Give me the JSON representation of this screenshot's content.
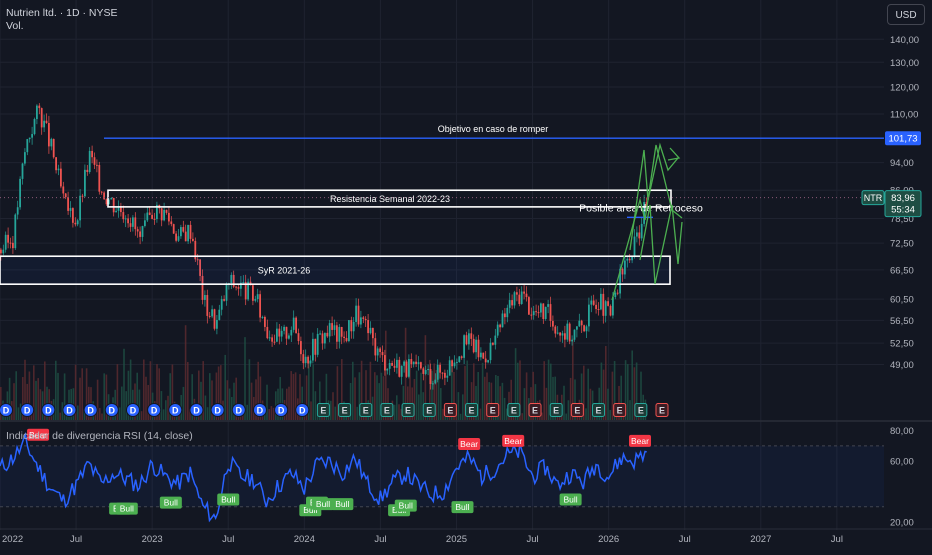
{
  "header": {
    "symbol_line": "Nutrien ltd. · 1D · NYSE",
    "volume_label": "Vol.",
    "currency_button": "USD"
  },
  "rsi": {
    "legend": "Indicador de divergencia RSI (14, close)",
    "axis_labels": [
      "80,00",
      "60,00",
      "20,00"
    ],
    "bull_label": "Bull",
    "bear_label": "Bear"
  },
  "price_tags": {
    "objective": "101,73",
    "symbol": "NTR",
    "last": "83,96",
    "countdown": "55:34"
  },
  "chart_data": [
    {
      "type": "candlestick",
      "title": "Nutrien ltd. · 1D · NYSE",
      "x_ticks": [
        "2022",
        "Jul",
        "2023",
        "Jul",
        "2024",
        "Jul",
        "2025",
        "Jul",
        "2026",
        "Jul",
        "2027",
        "Jul"
      ],
      "x_range": [
        "2022-01",
        "2027-12"
      ],
      "y_scale": "log",
      "y_ticks": [
        140,
        130,
        120,
        110,
        94,
        86,
        78.5,
        72.5,
        66.5,
        60.5,
        56.5,
        52.5,
        49
      ],
      "y_tick_labels": [
        "140,00",
        "130,00",
        "120,00",
        "110,00",
        "94,00",
        "86,00",
        "78,50",
        "72,50",
        "66,50",
        "60,50",
        "56,50",
        "52,50",
        "49,00"
      ],
      "ylim": [
        47.5,
        142
      ],
      "last_price": 83.96,
      "close_path": [
        {
          "x": "2022-01",
          "y": 71
        },
        {
          "x": "2022-02",
          "y": 74
        },
        {
          "x": "2022-03",
          "y": 100
        },
        {
          "x": "2022-04",
          "y": 112
        },
        {
          "x": "2022-05",
          "y": 98
        },
        {
          "x": "2022-06",
          "y": 82
        },
        {
          "x": "2022-07",
          "y": 78
        },
        {
          "x": "2022-08",
          "y": 96
        },
        {
          "x": "2022-09",
          "y": 86
        },
        {
          "x": "2022-10",
          "y": 82
        },
        {
          "x": "2022-11",
          "y": 80
        },
        {
          "x": "2022-12",
          "y": 73
        },
        {
          "x": "2023-01",
          "y": 81
        },
        {
          "x": "2023-02",
          "y": 80
        },
        {
          "x": "2023-03",
          "y": 74
        },
        {
          "x": "2023-04",
          "y": 76
        },
        {
          "x": "2023-05",
          "y": 60
        },
        {
          "x": "2023-06",
          "y": 56
        },
        {
          "x": "2023-07",
          "y": 64
        },
        {
          "x": "2023-08",
          "y": 63
        },
        {
          "x": "2023-09",
          "y": 61
        },
        {
          "x": "2023-10",
          "y": 55
        },
        {
          "x": "2023-11",
          "y": 53
        },
        {
          "x": "2023-12",
          "y": 56
        },
        {
          "x": "2024-01",
          "y": 50
        },
        {
          "x": "2024-02",
          "y": 53
        },
        {
          "x": "2024-03",
          "y": 55
        },
        {
          "x": "2024-04",
          "y": 53
        },
        {
          "x": "2024-05",
          "y": 58
        },
        {
          "x": "2024-06",
          "y": 54
        },
        {
          "x": "2024-07",
          "y": 50
        },
        {
          "x": "2024-08",
          "y": 49
        },
        {
          "x": "2024-09",
          "y": 48.5
        },
        {
          "x": "2024-10",
          "y": 47.8
        },
        {
          "x": "2024-11",
          "y": 47.5
        },
        {
          "x": "2024-12",
          "y": 48
        },
        {
          "x": "2025-01",
          "y": 51
        },
        {
          "x": "2025-02",
          "y": 53
        },
        {
          "x": "2025-03",
          "y": 50
        },
        {
          "x": "2025-04",
          "y": 53
        },
        {
          "x": "2025-05",
          "y": 59
        },
        {
          "x": "2025-06",
          "y": 62
        },
        {
          "x": "2025-07",
          "y": 58
        },
        {
          "x": "2025-08",
          "y": 58
        },
        {
          "x": "2025-09",
          "y": 55
        },
        {
          "x": "2025-10",
          "y": 54
        },
        {
          "x": "2025-11",
          "y": 56
        },
        {
          "x": "2025-12",
          "y": 61
        },
        {
          "x": "2026-01",
          "y": 57
        },
        {
          "x": "2026-02",
          "y": 66
        },
        {
          "x": "2026-03",
          "y": 72
        },
        {
          "x": "2026-04",
          "y": 84
        }
      ],
      "annotations": [
        {
          "text": "Objetivo en caso de romper",
          "kind": "horizontal_line",
          "y": 101.73
        },
        {
          "text": "Resistencia Semanal 2022-23",
          "kind": "zone",
          "y_range": [
            81.5,
            86
          ]
        },
        {
          "text": "SyR 2021-26",
          "kind": "zone",
          "y_range": [
            63.5,
            69.5
          ]
        },
        {
          "text": "Posible area de Retroceso",
          "kind": "label",
          "y": 80
        }
      ],
      "event_markers": [
        "D",
        "D",
        "D",
        "D",
        "D",
        "D",
        "D",
        "D",
        "D",
        "D",
        "D",
        "D",
        "D",
        "D",
        "D",
        "E",
        "E",
        "E",
        "E",
        "E",
        "E",
        "E",
        "E",
        "E",
        "E",
        "E",
        "E",
        "E",
        "E",
        "E",
        "E",
        "E"
      ]
    },
    {
      "type": "line",
      "title": "Indicador de divergencia RSI (14, close)",
      "ylim": [
        20,
        85
      ],
      "y_ticks": [
        80,
        60,
        20
      ],
      "band": [
        30,
        70
      ],
      "series": [
        {
          "name": "RSI",
          "color": "#2962ff",
          "values": [
            {
              "x": "2022-01",
              "y": 55
            },
            {
              "x": "2022-02",
              "y": 62
            },
            {
              "x": "2022-03",
              "y": 72
            },
            {
              "x": "2022-04",
              "y": 56
            },
            {
              "x": "2022-05",
              "y": 42
            },
            {
              "x": "2022-06",
              "y": 34
            },
            {
              "x": "2022-07",
              "y": 44
            },
            {
              "x": "2022-08",
              "y": 58
            },
            {
              "x": "2022-09",
              "y": 45
            },
            {
              "x": "2022-10",
              "y": 52
            },
            {
              "x": "2022-11",
              "y": 48
            },
            {
              "x": "2022-12",
              "y": 44
            },
            {
              "x": "2023-01",
              "y": 58
            },
            {
              "x": "2023-02",
              "y": 50
            },
            {
              "x": "2023-03",
              "y": 45
            },
            {
              "x": "2023-04",
              "y": 52
            },
            {
              "x": "2023-05",
              "y": 30
            },
            {
              "x": "2023-06",
              "y": 22
            },
            {
              "x": "2023-07",
              "y": 60
            },
            {
              "x": "2023-08",
              "y": 50
            },
            {
              "x": "2023-09",
              "y": 48
            },
            {
              "x": "2023-10",
              "y": 34
            },
            {
              "x": "2023-11",
              "y": 44
            },
            {
              "x": "2023-12",
              "y": 52
            },
            {
              "x": "2024-01",
              "y": 42
            },
            {
              "x": "2024-02",
              "y": 58
            },
            {
              "x": "2024-03",
              "y": 60
            },
            {
              "x": "2024-04",
              "y": 52
            },
            {
              "x": "2024-05",
              "y": 62
            },
            {
              "x": "2024-06",
              "y": 45
            },
            {
              "x": "2024-07",
              "y": 35
            },
            {
              "x": "2024-08",
              "y": 46
            },
            {
              "x": "2024-09",
              "y": 52
            },
            {
              "x": "2024-10",
              "y": 44
            },
            {
              "x": "2024-11",
              "y": 38
            },
            {
              "x": "2024-12",
              "y": 40
            },
            {
              "x": "2025-01",
              "y": 56
            },
            {
              "x": "2025-02",
              "y": 62
            },
            {
              "x": "2025-03",
              "y": 50
            },
            {
              "x": "2025-04",
              "y": 55
            },
            {
              "x": "2025-05",
              "y": 64
            },
            {
              "x": "2025-06",
              "y": 66
            },
            {
              "x": "2025-07",
              "y": 50
            },
            {
              "x": "2025-08",
              "y": 56
            },
            {
              "x": "2025-09",
              "y": 44
            },
            {
              "x": "2025-10",
              "y": 52
            },
            {
              "x": "2025-11",
              "y": 46
            },
            {
              "x": "2025-12",
              "y": 58
            },
            {
              "x": "2026-01",
              "y": 50
            },
            {
              "x": "2026-02",
              "y": 62
            },
            {
              "x": "2026-03",
              "y": 60
            },
            {
              "x": "2026-04",
              "y": 66
            }
          ]
        }
      ],
      "signals": [
        {
          "label": "Bear",
          "x": "2022-04",
          "y": 72
        },
        {
          "label": "Bull",
          "x": "2022-10",
          "y": 34
        },
        {
          "label": "Bull",
          "x": "2022-11",
          "y": 34
        },
        {
          "label": "Bull",
          "x": "2023-02",
          "y": 38
        },
        {
          "label": "Bull",
          "x": "2023-07",
          "y": 40
        },
        {
          "label": "Bull",
          "x": "2024-01",
          "y": 33
        },
        {
          "label": "Bull",
          "x": "2024-02",
          "y": 38
        },
        {
          "label": "Bull",
          "x": "2024-02",
          "y": 37
        },
        {
          "label": "Bull",
          "x": "2024-04",
          "y": 37
        },
        {
          "label": "Bull",
          "x": "2024-08",
          "y": 33
        },
        {
          "label": "Bull",
          "x": "2024-09",
          "y": 36
        },
        {
          "label": "Bull",
          "x": "2025-01",
          "y": 35
        },
        {
          "label": "Bear",
          "x": "2025-02",
          "y": 66
        },
        {
          "label": "Bear",
          "x": "2025-05",
          "y": 68
        },
        {
          "label": "Bull",
          "x": "2025-10",
          "y": 40
        },
        {
          "label": "Bear",
          "x": "2026-03",
          "y": 68
        }
      ]
    }
  ]
}
